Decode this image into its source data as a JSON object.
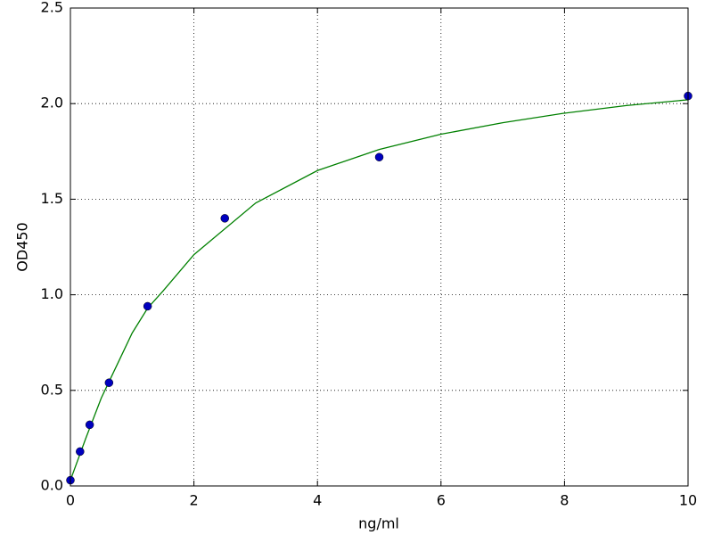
{
  "chart_data": {
    "type": "scatter",
    "xlabel": "ng/ml",
    "ylabel": "OD450",
    "xlim": [
      0,
      10
    ],
    "xticks": [
      0,
      2,
      4,
      6,
      8,
      10
    ],
    "ylim": [
      0,
      2.5
    ],
    "yticks": [
      {
        "value": 0,
        "label": "0.0"
      },
      0.5,
      {
        "value": 1,
        "label": "1.0"
      },
      1.5,
      {
        "value": 2,
        "label": "2.0"
      },
      2.5
    ],
    "grid": true,
    "series": [
      {
        "type": "scatter",
        "color": "#0000bf",
        "x": [
          0,
          0.156,
          0.312,
          0.625,
          1.25,
          2.5,
          5,
          10
        ],
        "values": [
          0.03,
          0.18,
          0.32,
          0.54,
          0.94,
          1.4,
          1.72,
          2.04
        ]
      },
      {
        "type": "line",
        "color": "#008000",
        "x": [
          0,
          0.25,
          0.5,
          0.75,
          1,
          1.25,
          1.5,
          2,
          3,
          4,
          5,
          6,
          7,
          8,
          9,
          10
        ],
        "values": [
          0.03,
          0.25,
          0.46,
          0.63,
          0.8,
          0.93,
          1.02,
          1.21,
          1.48,
          1.65,
          1.76,
          1.84,
          1.9,
          1.95,
          1.99,
          2.02
        ]
      }
    ]
  }
}
